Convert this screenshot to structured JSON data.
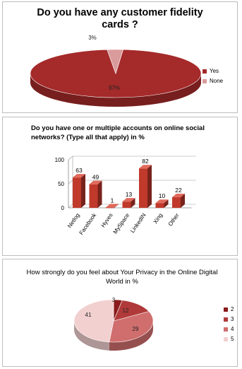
{
  "chart_data": [
    {
      "type": "pie",
      "title": "Do you have any customer fidelity cards ?",
      "labels": [
        "Yes",
        "None"
      ],
      "values": [
        97,
        3
      ],
      "data_labels": [
        "97%",
        "3%"
      ],
      "colors": [
        "#a52a2a",
        "#d99b9b"
      ],
      "legend_position": "right"
    },
    {
      "type": "bar",
      "title": "Do you have one or multiple accounts on online social networks? (Type all that apply) in %",
      "categories": [
        "Netlog",
        "Facebook",
        "Hyves",
        "MySpace",
        "LinkedIN",
        "Xing",
        "Other"
      ],
      "values": [
        63,
        49,
        1,
        13,
        82,
        10,
        22
      ],
      "ylim": [
        0,
        100
      ],
      "yticks": [
        "0",
        "50",
        "100"
      ],
      "color": "#c0392b",
      "grid": true
    },
    {
      "type": "pie",
      "title": "How strongly do you feel about  Your Privacy in the Online Digital World in %",
      "labels": [
        "2",
        "3",
        "4",
        "5"
      ],
      "values": [
        3,
        12,
        29,
        41
      ],
      "colors": [
        "#8b1a1a",
        "#b03a3a",
        "#d06e6e",
        "#f2d0d0"
      ],
      "legend_position": "right"
    }
  ]
}
